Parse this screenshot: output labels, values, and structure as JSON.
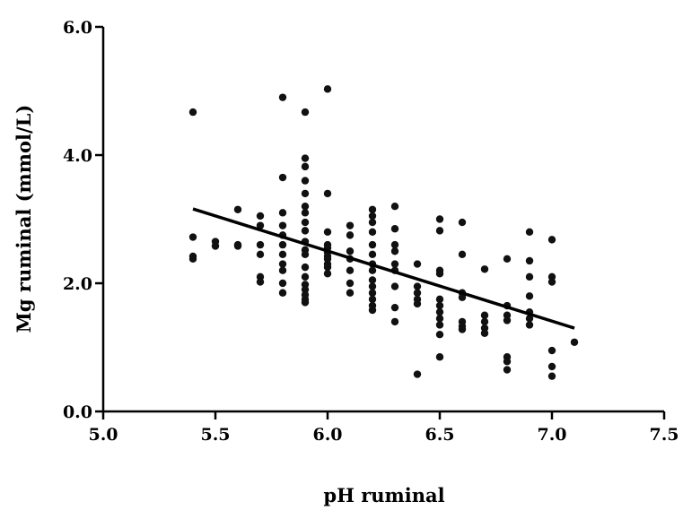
{
  "chart_data": {
    "type": "scatter",
    "title": "",
    "xlabel": "pH ruminal",
    "ylabel": "Mg ruminal (mmol/L)",
    "xlim": [
      5.0,
      7.5
    ],
    "ylim": [
      0.0,
      6.0
    ],
    "xticks": [
      "5.0",
      "5.5",
      "6.0",
      "6.5",
      "7.0",
      "7.5"
    ],
    "yticks": [
      "0.0",
      "2.0",
      "4.0",
      "6.0"
    ],
    "grid": false,
    "legend": "none",
    "point_color": "#111111",
    "series": [
      {
        "points": [
          [
            5.4,
            4.67
          ],
          [
            5.4,
            2.72
          ],
          [
            5.4,
            2.42
          ],
          [
            5.4,
            2.38
          ],
          [
            5.5,
            2.65
          ],
          [
            5.5,
            2.58
          ],
          [
            5.6,
            3.15
          ],
          [
            5.6,
            2.6
          ],
          [
            5.6,
            2.58
          ],
          [
            5.7,
            3.05
          ],
          [
            5.7,
            2.9
          ],
          [
            5.7,
            2.6
          ],
          [
            5.7,
            2.45
          ],
          [
            5.7,
            2.1
          ],
          [
            5.7,
            2.02
          ],
          [
            5.8,
            4.9
          ],
          [
            5.8,
            3.65
          ],
          [
            5.8,
            3.1
          ],
          [
            5.8,
            2.9
          ],
          [
            5.8,
            2.75
          ],
          [
            5.8,
            2.6
          ],
          [
            5.8,
            2.45
          ],
          [
            5.8,
            2.3
          ],
          [
            5.8,
            2.2
          ],
          [
            5.8,
            2.0
          ],
          [
            5.8,
            1.85
          ],
          [
            5.9,
            4.67
          ],
          [
            5.9,
            3.95
          ],
          [
            5.9,
            3.82
          ],
          [
            5.9,
            3.6
          ],
          [
            5.9,
            3.4
          ],
          [
            5.9,
            3.2
          ],
          [
            5.9,
            3.1
          ],
          [
            5.9,
            2.95
          ],
          [
            5.9,
            2.82
          ],
          [
            5.9,
            2.65
          ],
          [
            5.9,
            2.52
          ],
          [
            5.9,
            2.45
          ],
          [
            5.9,
            2.25
          ],
          [
            5.9,
            2.1
          ],
          [
            5.9,
            1.98
          ],
          [
            5.9,
            1.9
          ],
          [
            5.9,
            1.82
          ],
          [
            5.9,
            1.75
          ],
          [
            5.9,
            1.7
          ],
          [
            6.0,
            5.03
          ],
          [
            6.0,
            3.4
          ],
          [
            6.0,
            2.8
          ],
          [
            6.0,
            2.6
          ],
          [
            6.0,
            2.55
          ],
          [
            6.0,
            2.48
          ],
          [
            6.0,
            2.42
          ],
          [
            6.0,
            2.38
          ],
          [
            6.0,
            2.3
          ],
          [
            6.0,
            2.25
          ],
          [
            6.0,
            2.15
          ],
          [
            6.1,
            2.9
          ],
          [
            6.1,
            2.75
          ],
          [
            6.1,
            2.5
          ],
          [
            6.1,
            2.38
          ],
          [
            6.1,
            2.2
          ],
          [
            6.1,
            2.0
          ],
          [
            6.1,
            1.85
          ],
          [
            6.2,
            3.15
          ],
          [
            6.2,
            3.05
          ],
          [
            6.2,
            2.95
          ],
          [
            6.2,
            2.8
          ],
          [
            6.2,
            2.6
          ],
          [
            6.2,
            2.45
          ],
          [
            6.2,
            2.3
          ],
          [
            6.2,
            2.2
          ],
          [
            6.2,
            2.05
          ],
          [
            6.2,
            1.95
          ],
          [
            6.2,
            1.85
          ],
          [
            6.2,
            1.75
          ],
          [
            6.2,
            1.65
          ],
          [
            6.2,
            1.58
          ],
          [
            6.3,
            3.2
          ],
          [
            6.3,
            2.85
          ],
          [
            6.3,
            2.6
          ],
          [
            6.3,
            2.5
          ],
          [
            6.3,
            2.3
          ],
          [
            6.3,
            2.2
          ],
          [
            6.3,
            1.95
          ],
          [
            6.3,
            1.62
          ],
          [
            6.3,
            1.4
          ],
          [
            6.4,
            2.3
          ],
          [
            6.4,
            1.95
          ],
          [
            6.4,
            1.85
          ],
          [
            6.4,
            1.75
          ],
          [
            6.4,
            1.68
          ],
          [
            6.4,
            0.58
          ],
          [
            6.5,
            3.0
          ],
          [
            6.5,
            2.82
          ],
          [
            6.5,
            2.2
          ],
          [
            6.5,
            2.15
          ],
          [
            6.5,
            1.75
          ],
          [
            6.5,
            1.65
          ],
          [
            6.5,
            1.55
          ],
          [
            6.5,
            1.45
          ],
          [
            6.5,
            1.35
          ],
          [
            6.5,
            1.2
          ],
          [
            6.5,
            0.85
          ],
          [
            6.6,
            2.95
          ],
          [
            6.6,
            2.45
          ],
          [
            6.6,
            1.85
          ],
          [
            6.6,
            1.78
          ],
          [
            6.6,
            1.4
          ],
          [
            6.6,
            1.33
          ],
          [
            6.6,
            1.28
          ],
          [
            6.7,
            2.22
          ],
          [
            6.7,
            1.5
          ],
          [
            6.7,
            1.4
          ],
          [
            6.7,
            1.3
          ],
          [
            6.7,
            1.22
          ],
          [
            6.8,
            2.38
          ],
          [
            6.8,
            1.65
          ],
          [
            6.8,
            1.5
          ],
          [
            6.8,
            1.42
          ],
          [
            6.8,
            0.85
          ],
          [
            6.8,
            0.78
          ],
          [
            6.8,
            0.65
          ],
          [
            6.9,
            2.8
          ],
          [
            6.9,
            2.35
          ],
          [
            6.9,
            2.1
          ],
          [
            6.9,
            1.8
          ],
          [
            6.9,
            1.55
          ],
          [
            6.9,
            1.45
          ],
          [
            6.9,
            1.35
          ],
          [
            7.0,
            2.68
          ],
          [
            7.0,
            2.1
          ],
          [
            7.0,
            2.02
          ],
          [
            7.0,
            0.95
          ],
          [
            7.0,
            0.7
          ],
          [
            7.0,
            0.55
          ],
          [
            7.1,
            1.08
          ]
        ]
      }
    ],
    "regression_line": {
      "x": [
        5.4,
        7.1
      ],
      "y": [
        3.16,
        1.3
      ]
    }
  }
}
